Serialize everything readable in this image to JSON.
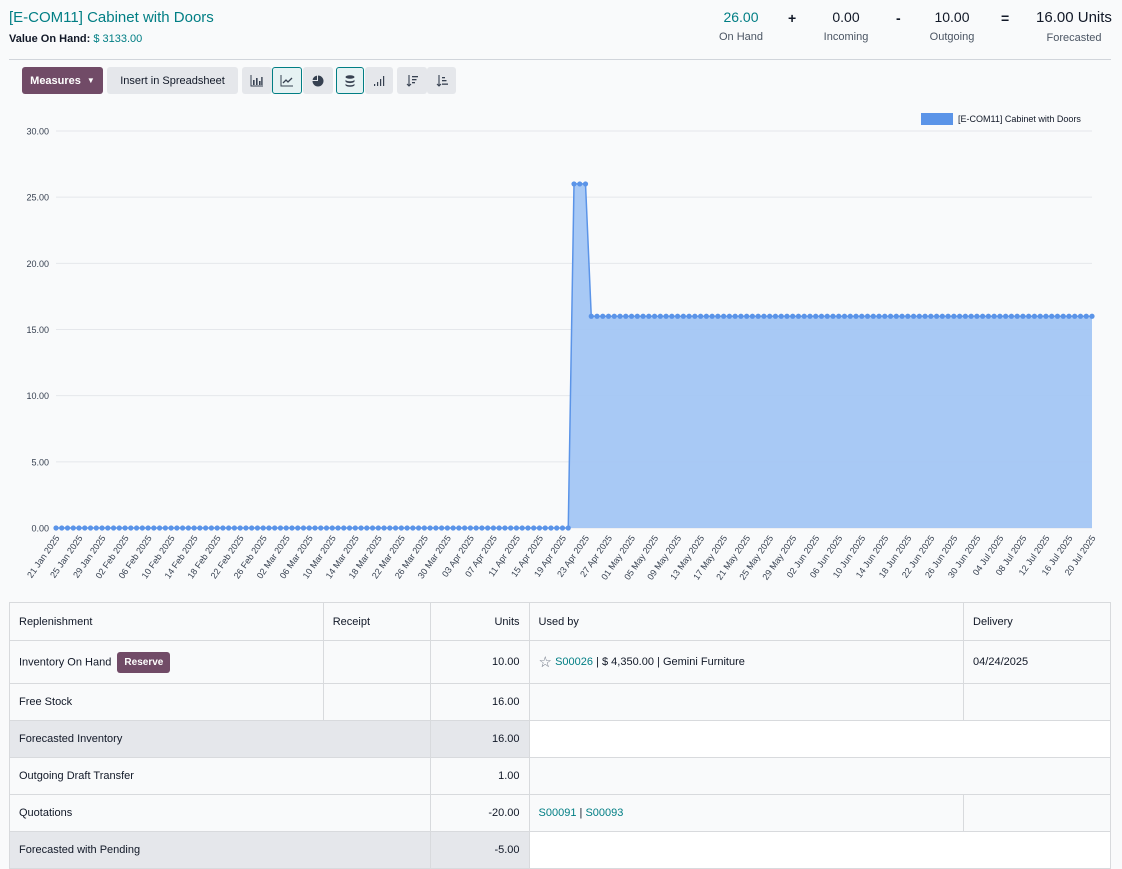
{
  "header": {
    "title": "[E-COM11] Cabinet with Doors",
    "value_label": "Value On Hand:",
    "value_amount": "$ 3133.00",
    "on_hand": "26.00",
    "on_hand_label": "On Hand",
    "plus": "+",
    "incoming": "0.00",
    "incoming_label": "Incoming",
    "minus": "-",
    "outgoing": "10.00",
    "outgoing_label": "Outgoing",
    "equals": "=",
    "forecasted": "16.00 Units",
    "forecasted_label": "Forecasted"
  },
  "toolbar": {
    "measures": "Measures",
    "spreadsheet": "Insert in Spreadsheet",
    "icons": [
      "bar-chart-icon",
      "line-chart-icon",
      "pie-chart-icon",
      "stacked-icon",
      "cumulative-icon",
      "sort-descending-icon",
      "sort-ascending-icon"
    ]
  },
  "colors": {
    "accent": "#017e84",
    "primary": "#714b67",
    "series_line": "#5b94e8",
    "series_fill": "#a3c6f4"
  },
  "chart_data": {
    "type": "area",
    "legend": [
      "[E-COM11] Cabinet with Doors"
    ],
    "legend_position": "top-right",
    "ylim": [
      0,
      30
    ],
    "y_ticks": [
      "0.00",
      "5.00",
      "10.00",
      "15.00",
      "20.00",
      "25.00",
      "30.00"
    ],
    "grid": true,
    "x_labels": [
      "21 Jan 2025",
      "25 Jan 2025",
      "29 Jan 2025",
      "02 Feb 2025",
      "06 Feb 2025",
      "10 Feb 2025",
      "14 Feb 2025",
      "18 Feb 2025",
      "22 Feb 2025",
      "26 Feb 2025",
      "02 Mar 2025",
      "06 Mar 2025",
      "10 Mar 2025",
      "14 Mar 2025",
      "18 Mar 2025",
      "22 Mar 2025",
      "26 Mar 2025",
      "30 Mar 2025",
      "03 Apr 2025",
      "07 Apr 2025",
      "11 Apr 2025",
      "15 Apr 2025",
      "19 Apr 2025",
      "23 Apr 2025",
      "27 Apr 2025",
      "01 May 2025",
      "05 May 2025",
      "09 May 2025",
      "13 May 2025",
      "17 May 2025",
      "21 May 2025",
      "25 May 2025",
      "29 May 2025",
      "02 Jun 2025",
      "06 Jun 2025",
      "10 Jun 2025",
      "14 Jun 2025",
      "18 Jun 2025",
      "22 Jun 2025",
      "26 Jun 2025",
      "30 Jun 2025",
      "04 Jul 2025",
      "08 Jul 2025",
      "12 Jul 2025",
      "16 Jul 2025",
      "20 Jul 2025"
    ],
    "x_start": "2025-01-21",
    "x_end": "2025-07-20",
    "series": [
      {
        "name": "[E-COM11] Cabinet with Doors",
        "steps": [
          {
            "from": "2025-01-21",
            "to": "2025-04-20",
            "value": 0
          },
          {
            "from": "2025-04-21",
            "to": "2025-04-23",
            "value": 26
          },
          {
            "from": "2025-04-24",
            "to": "2025-07-20",
            "value": 16
          }
        ]
      }
    ]
  },
  "table": {
    "headers": [
      "Replenishment",
      "Receipt",
      "Units",
      "Used by",
      "Delivery"
    ],
    "rows": {
      "inventory_on_hand": {
        "label": "Inventory On Hand",
        "reserve": "Reserve",
        "units": "10.00",
        "so": "S00026",
        "sep": "|",
        "amount": "$ 4,350.00",
        "customer": "Gemini Furniture",
        "delivery": "04/24/2025"
      },
      "free_stock": {
        "label": "Free Stock",
        "units": "16.00"
      },
      "forecasted_inventory": {
        "label": "Forecasted Inventory",
        "units": "16.00"
      },
      "outgoing_draft": {
        "label": "Outgoing Draft Transfer",
        "units": "1.00"
      },
      "quotations": {
        "label": "Quotations",
        "units": "-20.00",
        "q1": "S00091",
        "sep": "|",
        "q2": "S00093"
      },
      "forecasted_pending": {
        "label": "Forecasted with Pending",
        "units": "-5.00"
      }
    }
  }
}
